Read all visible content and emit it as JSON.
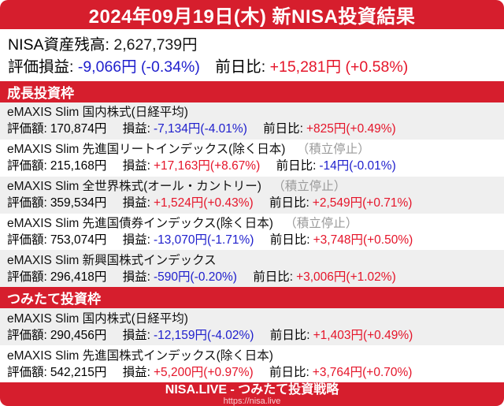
{
  "title": "2024年09月19日(木) 新NISA投資結果",
  "summary": {
    "balance_label": "NISA資産残高:",
    "balance_value": "2,627,739円",
    "pl_label": "評価損益:",
    "pl_value": "-9,066円 (-0.34%)",
    "day_label": "前日比:",
    "day_value": "+15,281円 (+0.58%)"
  },
  "labels": {
    "value": "評価額:",
    "pl": "損益:",
    "day": "前日比:"
  },
  "sections": [
    {
      "title": "成長投資枠",
      "funds": [
        {
          "name": "eMAXIS Slim 国内株式(日経平均)",
          "value": "170,874円",
          "pl": "-7,134円(-4.01%)",
          "day": "+825円(+0.49%)"
        },
        {
          "name": "eMAXIS Slim 先進国リートインデックス(除く日本)",
          "suspended": "（積立停止）",
          "value": "215,168円",
          "pl": "+17,163円(+8.67%)",
          "day": "-14円(-0.01%)"
        },
        {
          "name": "eMAXIS Slim 全世界株式(オール・カントリー)",
          "suspended": "（積立停止）",
          "value": "359,534円",
          "pl": "+1,524円(+0.43%)",
          "day": "+2,549円(+0.71%)"
        },
        {
          "name": "eMAXIS Slim 先進国債券インデックス(除く日本)",
          "suspended": "（積立停止）",
          "value": "753,074円",
          "pl": "-13,070円(-1.71%)",
          "day": "+3,748円(+0.50%)"
        },
        {
          "name": "eMAXIS Slim 新興国株式インデックス",
          "value": "296,418円",
          "pl": "-590円(-0.20%)",
          "day": "+3,006円(+1.02%)"
        }
      ]
    },
    {
      "title": "つみたて投資枠",
      "funds": [
        {
          "name": "eMAXIS Slim 国内株式(日経平均)",
          "value": "290,456円",
          "pl": "-12,159円(-4.02%)",
          "day": "+1,403円(+0.49%)"
        },
        {
          "name": "eMAXIS Slim 先進国株式インデックス(除く日本)",
          "value": "542,215円",
          "pl": "+5,200円(+0.97%)",
          "day": "+3,764円(+0.70%)"
        }
      ]
    }
  ],
  "footer": {
    "title": "NISA.LIVE - つみたて投資戦略",
    "url": "https://nisa.live"
  },
  "colors": {
    "accent": "#d61e2d",
    "positive": "#e5152a",
    "negative": "#2020cd",
    "row-alt": "#efefef",
    "muted": "#9a9a9a"
  }
}
